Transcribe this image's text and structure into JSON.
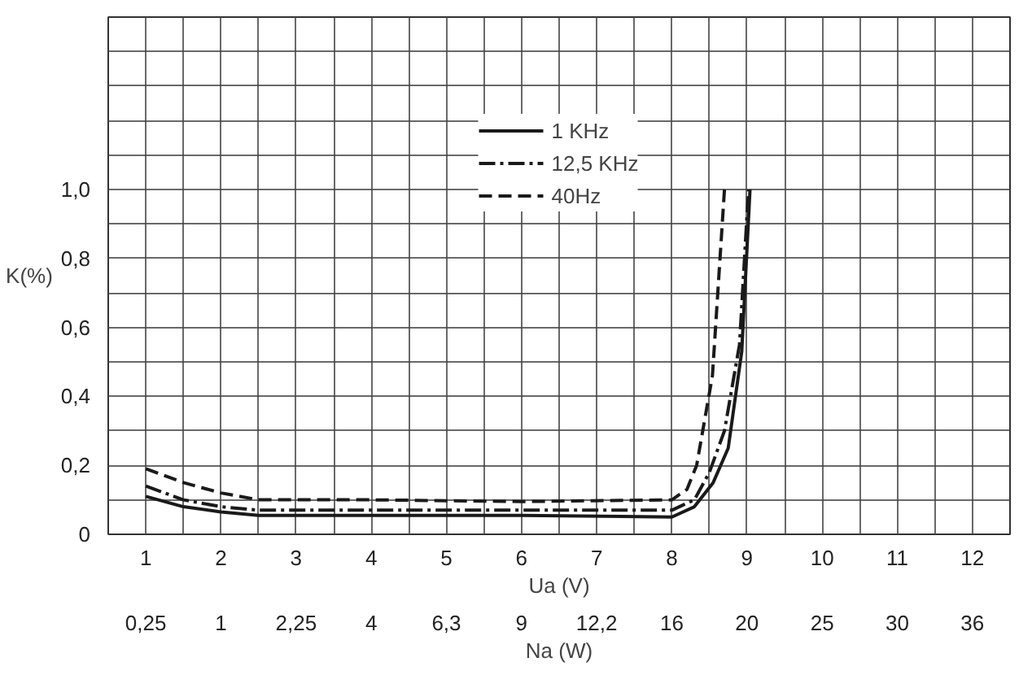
{
  "chart_data": {
    "type": "line",
    "ylabel": "K(%)",
    "xlabel": "Ua (V)",
    "annotations": [
      "Na (W)",
      "0,25",
      "1",
      "2,25",
      "4",
      "6,3",
      "9",
      "12,2",
      "16",
      "20",
      "25",
      "30",
      "36"
    ],
    "xlim": [
      0.5,
      12.5
    ],
    "xticks": [
      {
        "value": 0.5,
        "label": null
      },
      1,
      {
        "value": 1.5,
        "label": null
      },
      2,
      {
        "value": 2.5,
        "label": null
      },
      3,
      {
        "value": 3.5,
        "label": null
      },
      4,
      {
        "value": 4.5,
        "label": null
      },
      5,
      {
        "value": 5.5,
        "label": null
      },
      6,
      {
        "value": 6.5,
        "label": null
      },
      7,
      {
        "value": 7.5,
        "label": null
      },
      8,
      {
        "value": 8.5,
        "label": null
      },
      9,
      {
        "value": 9.5,
        "label": null
      },
      10,
      {
        "value": 10.5,
        "label": null
      },
      11,
      {
        "value": 11.5,
        "label": null
      },
      12,
      {
        "value": 12.5,
        "label": null
      }
    ],
    "ylim": [
      0,
      1.5
    ],
    "yticks": [
      0,
      {
        "value": 0.1,
        "label": null
      },
      {
        "value": 0.2,
        "label": "0,2"
      },
      {
        "value": 0.3,
        "label": null
      },
      {
        "value": 0.4,
        "label": "0,4"
      },
      {
        "value": 0.5,
        "label": null
      },
      {
        "value": 0.6,
        "label": "0,6"
      },
      {
        "value": 0.7,
        "label": null
      },
      {
        "value": 0.8,
        "label": "0,8"
      },
      {
        "value": 0.9,
        "label": null
      },
      {
        "value": 1.0,
        "label": "1,0"
      },
      {
        "value": 1.1,
        "label": null
      },
      {
        "value": 1.2,
        "label": null
      },
      {
        "value": 1.3,
        "label": null
      },
      {
        "value": 1.4,
        "label": null
      },
      {
        "value": 1.5,
        "label": null
      }
    ],
    "grid": true,
    "legend": "top",
    "series": [
      {
        "name": "1 KHz",
        "color": "#1a1a1a",
        "line_style": "solid",
        "x": [
          1,
          1.5,
          2,
          2.5,
          4,
          6,
          8,
          8.3,
          8.55,
          8.75,
          8.93,
          9.04
        ],
        "values": [
          0.11,
          0.08,
          0.065,
          0.055,
          0.055,
          0.055,
          0.05,
          0.08,
          0.15,
          0.25,
          0.53,
          1.0
        ]
      },
      {
        "name": "12,5 KHz",
        "color": "#1a1a1a",
        "line_style": "dashdot",
        "x": [
          1,
          1.5,
          2,
          2.5,
          4,
          6,
          8,
          8.3,
          8.5,
          8.7,
          8.9,
          9.02
        ],
        "values": [
          0.14,
          0.1,
          0.08,
          0.07,
          0.07,
          0.07,
          0.07,
          0.1,
          0.18,
          0.3,
          0.55,
          1.0
        ]
      },
      {
        "name": "40Hz",
        "color": "#1a1a1a",
        "line_style": "dashed",
        "x": [
          1,
          1.5,
          2,
          2.5,
          4,
          6,
          8,
          8.2,
          8.33,
          8.54,
          8.7
        ],
        "values": [
          0.19,
          0.15,
          0.12,
          0.1,
          0.1,
          0.095,
          0.1,
          0.13,
          0.2,
          0.46,
          1.0
        ]
      }
    ]
  }
}
